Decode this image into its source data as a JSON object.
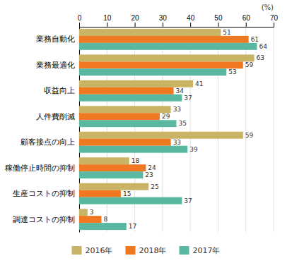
{
  "chart_data": {
    "type": "bar",
    "orientation": "horizontal",
    "categories": [
      "業務自動化",
      "業務最適化",
      "収益向上",
      "人件費削減",
      "顧客接点の向上",
      "稼働停止時間の抑制",
      "生産コストの抑制",
      "調達コストの抑制"
    ],
    "series": [
      {
        "name": "2016年",
        "color": "#C8B464",
        "values": [
          51,
          63,
          41,
          33,
          59,
          18,
          25,
          3
        ]
      },
      {
        "name": "2018年",
        "color": "#F07820",
        "values": [
          61,
          59,
          34,
          29,
          33,
          24,
          15,
          8
        ]
      },
      {
        "name": "2017年",
        "color": "#5BB8A0",
        "values": [
          64,
          53,
          37,
          35,
          39,
          23,
          37,
          17
        ]
      }
    ],
    "xlabel": "(%)",
    "xlim": [
      0,
      70
    ],
    "xticks": [
      0,
      10,
      20,
      30,
      40,
      50,
      60,
      70
    ],
    "grid": true,
    "data_labels": true,
    "legend": "bottom"
  }
}
